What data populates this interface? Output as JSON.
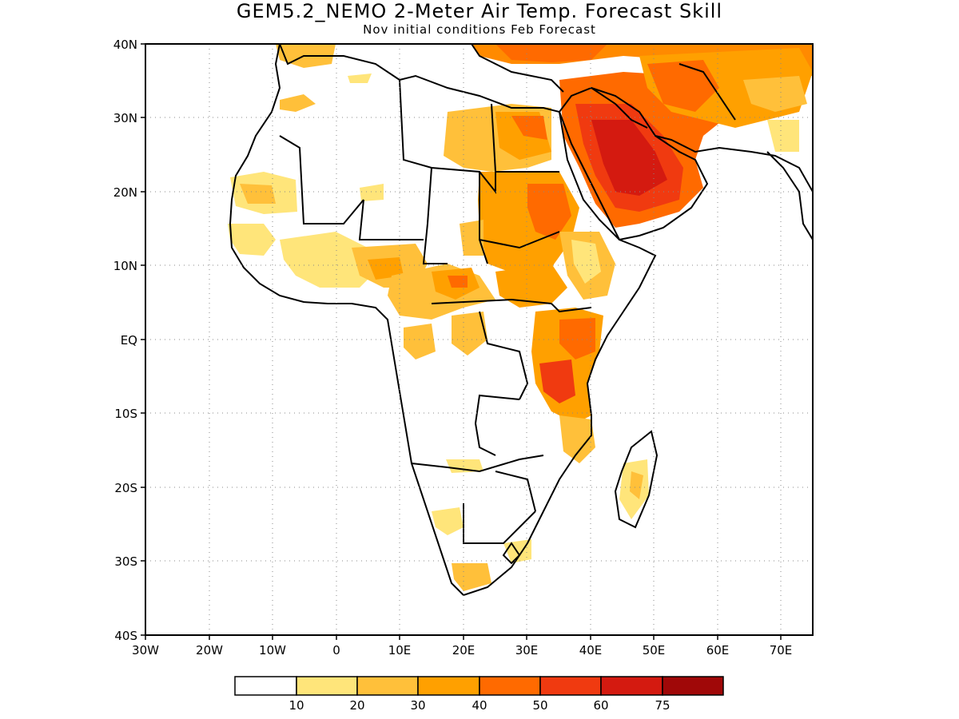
{
  "title": "GEM5.2_NEMO 2-Meter Air Temp. Forecast Skill",
  "subtitle": "Nov initial conditions  Feb Forecast",
  "map": {
    "region": "Africa and Middle East",
    "projection": "equirectangular",
    "lon_range": [
      -30,
      75
    ],
    "lat_range": [
      -40,
      40
    ],
    "grid": "dotted",
    "lat_labels": [
      "40N",
      "30N",
      "20N",
      "10N",
      "EQ",
      "10S",
      "20S",
      "30S",
      "40S"
    ],
    "lon_labels": [
      "30W",
      "20W",
      "10W",
      "0",
      "10E",
      "20E",
      "30E",
      "40E",
      "50E",
      "60E",
      "70E"
    ]
  },
  "colorbar": {
    "labels": [
      "10",
      "20",
      "30",
      "40",
      "50",
      "60",
      "75"
    ],
    "colors": [
      "#ffffff",
      "#ffe57a",
      "#ffc03a",
      "#ffa000",
      "#ff6a00",
      "#f03a10",
      "#d41a10",
      "#a00808"
    ]
  }
}
